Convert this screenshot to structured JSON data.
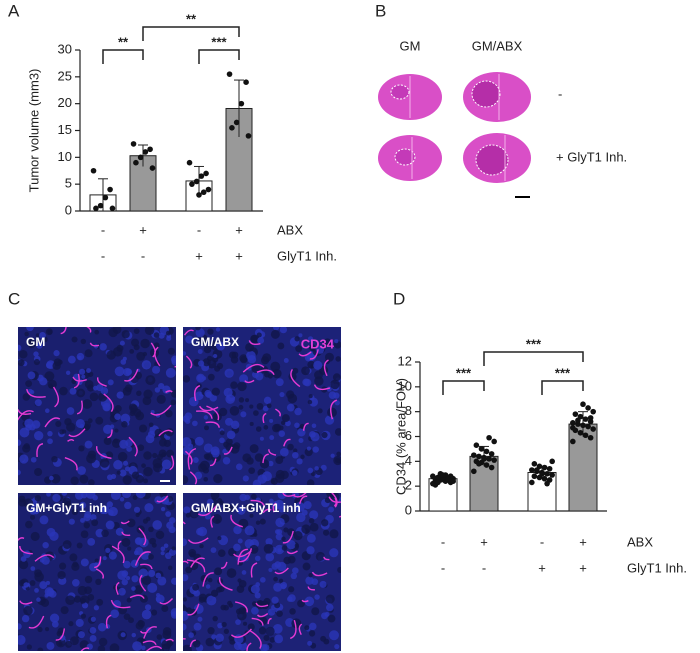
{
  "panel_labels": [
    "A",
    "B",
    "C",
    "D"
  ],
  "brain_images": {
    "columns": [
      "GM",
      "GM/ABX"
    ],
    "rows": [
      "-",
      "+ GlyT1 Inh."
    ]
  },
  "micrographs": {
    "labels": [
      "GM",
      "GM/ABX",
      "GM+GlyT1 inh",
      "GM/ABX+GlyT1 inh"
    ],
    "stain": "CD34"
  },
  "chart_data": [
    {
      "type": "bar",
      "y_label": "Tumor volume (mm3)",
      "values": [
        3,
        10.3,
        5.6,
        19.1
      ],
      "errors": [
        3,
        2,
        2.7,
        5.3
      ],
      "points": [
        [
          7.5,
          4,
          2.5,
          1,
          0.5,
          0.5
        ],
        [
          12.5,
          11.5,
          11,
          10,
          9,
          8
        ],
        [
          9,
          7,
          6.5,
          5.5,
          5,
          4,
          3.5,
          3
        ],
        [
          25.5,
          24,
          20,
          16.5,
          15.5,
          14
        ]
      ],
      "colors": [
        "#ffffff",
        "#999999",
        "#ffffff",
        "#999999"
      ],
      "ylim": [
        0,
        30
      ],
      "yticks": [
        0,
        5,
        10,
        15,
        20,
        25,
        30
      ],
      "annotations": [
        "**",
        "***",
        "**"
      ],
      "conditions": [
        {
          "name": "ABX",
          "signs": [
            "-",
            "+",
            "-",
            "+"
          ]
        },
        {
          "name": "GlyT1 Inh.",
          "signs": [
            "-",
            "-",
            "+",
            "+"
          ]
        }
      ]
    },
    {
      "type": "bar",
      "y_label": "CD34  (% area/FOV)",
      "values": [
        2.6,
        4.4,
        3.1,
        7.0
      ],
      "errors": [
        0.3,
        0.8,
        0.5,
        1.0
      ],
      "points": [
        [
          2.2,
          2.3,
          2.4,
          2.5,
          2.5,
          2.6,
          2.6,
          2.7,
          2.7,
          2.8,
          2.8,
          2.9,
          3.0,
          2.1,
          2.4,
          2.6,
          2.9,
          2.3
        ],
        [
          3.2,
          3.5,
          3.7,
          3.9,
          4.0,
          4.1,
          4.2,
          4.3,
          4.4,
          4.5,
          4.6,
          4.8,
          5.0,
          5.3,
          5.6,
          5.9,
          4.2,
          3.8
        ],
        [
          2.3,
          2.5,
          2.6,
          2.7,
          2.8,
          2.9,
          3.0,
          3.1,
          3.2,
          3.3,
          3.4,
          3.5,
          3.6,
          3.8,
          4.0,
          2.2,
          3.0,
          3.3
        ],
        [
          5.6,
          5.9,
          6.1,
          6.3,
          6.5,
          6.6,
          6.8,
          6.9,
          7.0,
          7.1,
          7.2,
          7.4,
          7.6,
          7.8,
          8.0,
          8.3,
          8.6,
          7.3,
          6.7,
          7.5
        ]
      ],
      "colors": [
        "#ffffff",
        "#999999",
        "#ffffff",
        "#999999"
      ],
      "ylim": [
        0,
        12
      ],
      "yticks": [
        0,
        2,
        4,
        6,
        8,
        10,
        12
      ],
      "annotations": [
        "***",
        "***",
        "***"
      ],
      "conditions": [
        {
          "name": "ABX",
          "signs": [
            "-",
            "+",
            "-",
            "+"
          ]
        },
        {
          "name": "GlyT1 Inh.",
          "signs": [
            "-",
            "-",
            "+",
            "+"
          ]
        }
      ]
    }
  ]
}
